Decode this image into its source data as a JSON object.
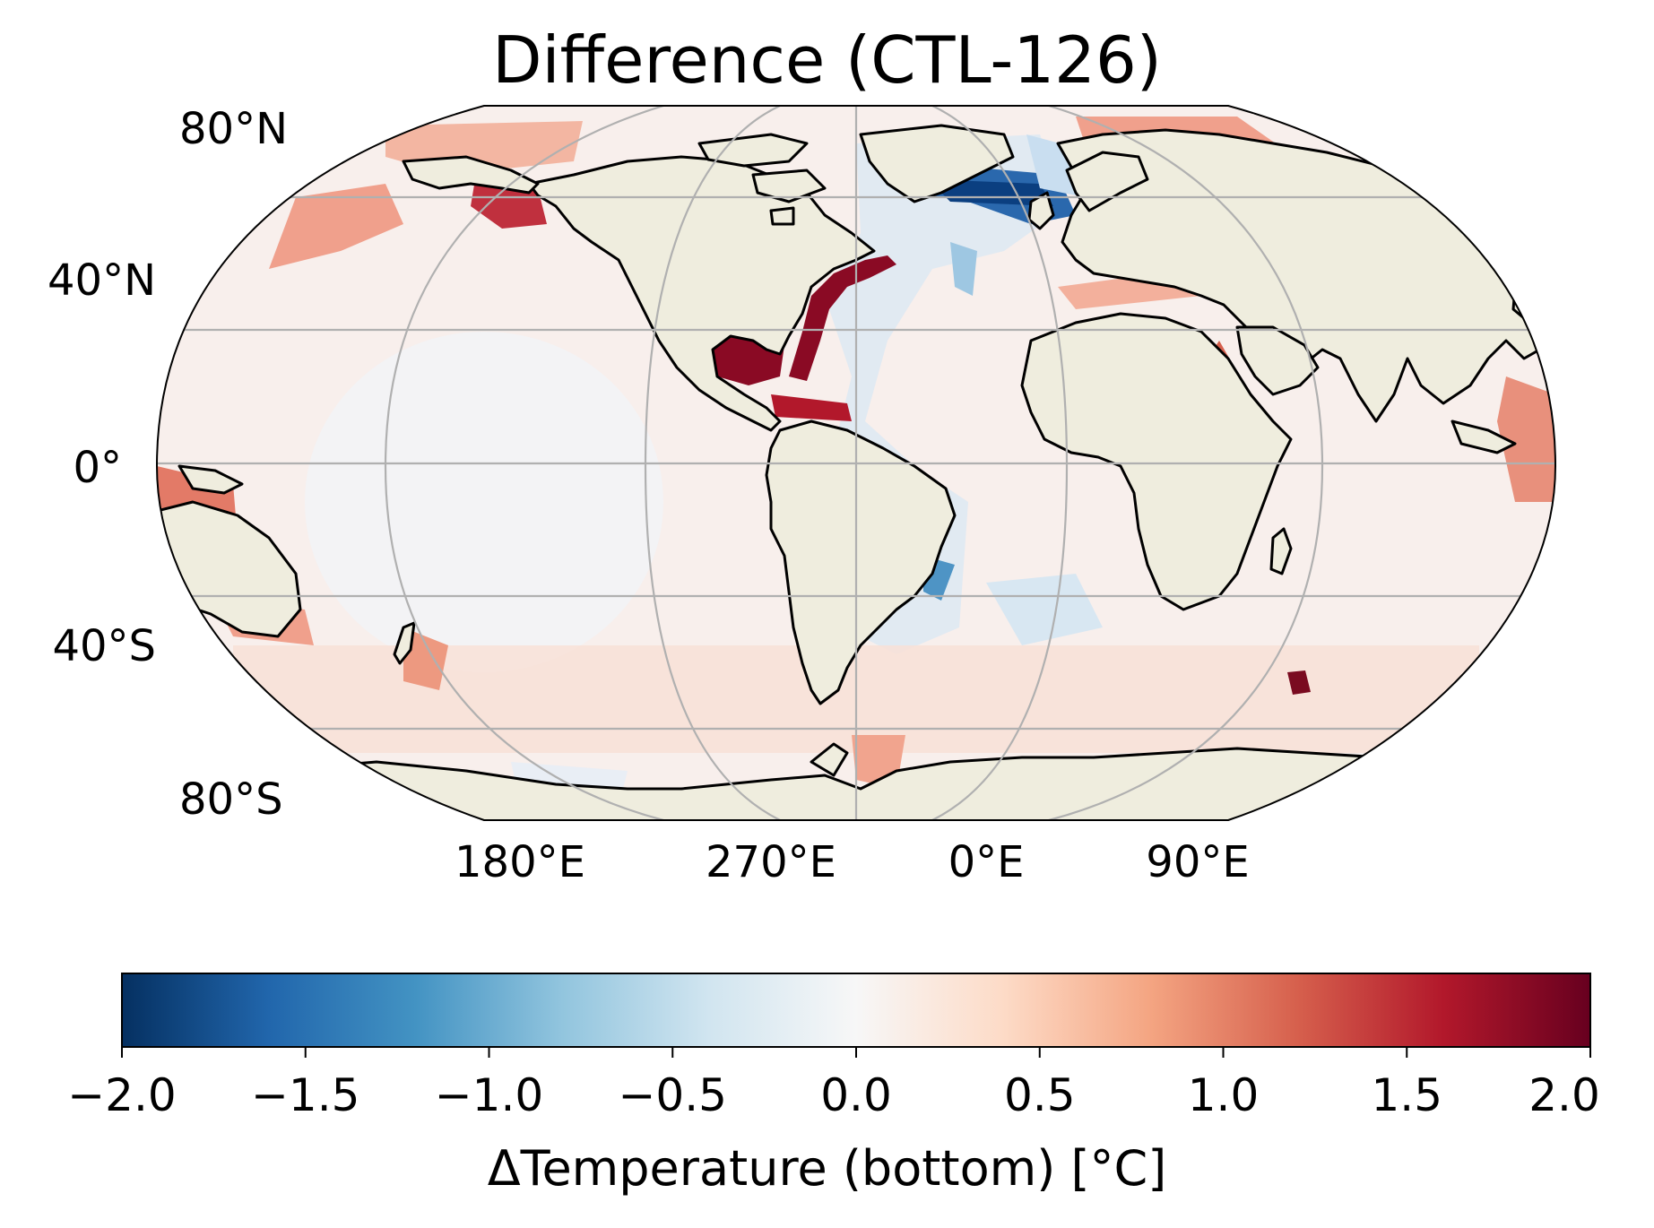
{
  "title": "Difference (CTL-126)",
  "map": {
    "projection": "Robinson",
    "central_longitude": 300,
    "land_color": "#efedde",
    "coastline_color": "#000000",
    "gridline_color": "#b0b0b0",
    "lat_labels": [
      "80°N",
      "40°N",
      "0°",
      "40°S",
      "80°S"
    ],
    "lon_labels": [
      "180°E",
      "270°E",
      "0°E",
      "90°E"
    ]
  },
  "colorbar": {
    "colormap": "RdBu_r",
    "vmin": -2.0,
    "vmax": 2.0,
    "tick_labels": [
      "−2.0",
      "−1.5",
      "−1.0",
      "−0.5",
      "0.0",
      "0.5",
      "1.0",
      "1.5",
      "2.0"
    ],
    "label": "ΔTemperature (bottom) [°C]",
    "colors": [
      "#053061",
      "#2166ac",
      "#4393c3",
      "#92c5de",
      "#d1e5f0",
      "#f7f7f7",
      "#fddbc7",
      "#f4a582",
      "#d6604d",
      "#b2182b",
      "#67001f"
    ]
  }
}
